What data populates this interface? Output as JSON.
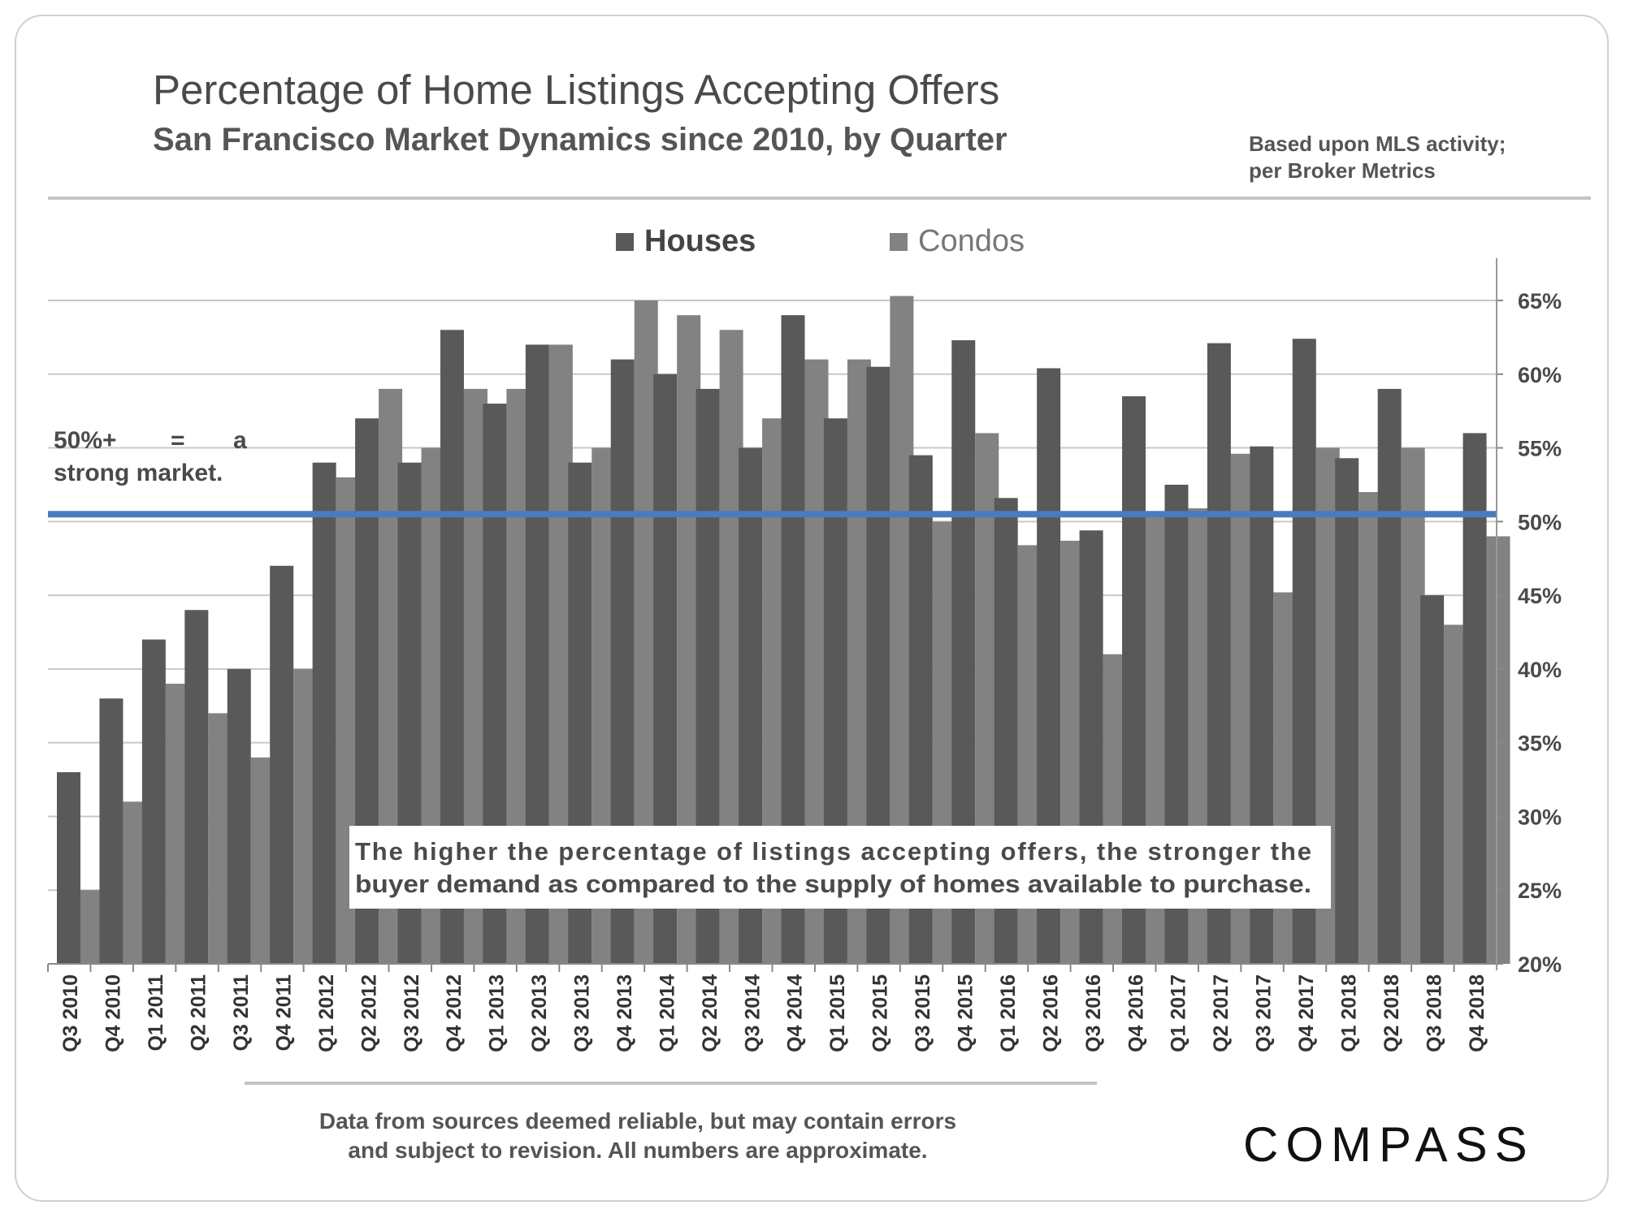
{
  "header": {
    "title": "Percentage of Home Listings Accepting Offers",
    "subtitle": "San Francisco Market Dynamics since 2010, by Quarter",
    "source_note_line1": "Based upon MLS activity;",
    "source_note_line2": "per Broker Metrics"
  },
  "annotation": {
    "line1_a": "50%+",
    "line1_b": "=",
    "line1_c": "a",
    "line2": "strong market."
  },
  "callout": {
    "line1": "The higher the percentage of listings accepting offers, the stronger the",
    "line2": "buyer demand as compared to the supply of homes available to purchase."
  },
  "footer": {
    "disclaimer_line1": "Data from sources deemed reliable, but may contain errors",
    "disclaimer_line2": "and subject to revision. All numbers are approximate.",
    "logo": "COMPASS"
  },
  "colors": {
    "houses": "#595959",
    "condos": "#828282",
    "threshold": "#4a7bbd",
    "grid": "#c8c8c8",
    "text": "#4a4a4a"
  },
  "chart_data": {
    "type": "bar",
    "title": "Percentage of Home Listings Accepting Offers",
    "subtitle": "San Francisco Market Dynamics since 2010, by Quarter",
    "xlabel": "",
    "ylabel": "",
    "ylim": [
      20,
      65
    ],
    "yticks": [
      20,
      25,
      30,
      35,
      40,
      45,
      50,
      55,
      60,
      65
    ],
    "ytick_labels": [
      "20%",
      "25%",
      "30%",
      "35%",
      "40%",
      "45%",
      "50%",
      "55%",
      "60%",
      "65%"
    ],
    "y_axis_side": "right",
    "grid": true,
    "legend_placement": "top-center",
    "threshold_line": 50.5,
    "categories": [
      "Q3 2010",
      "Q4 2010",
      "Q1 2011",
      "Q2 2011",
      "Q3 2011",
      "Q4 2011",
      "Q1 2012",
      "Q2 2012",
      "Q3 2012",
      "Q4 2012",
      "Q1 2013",
      "Q2 2013",
      "Q3 2013",
      "Q4 2013",
      "Q1 2014",
      "Q2 2014",
      "Q3 2014",
      "Q4 2014",
      "Q1 2015",
      "Q2 2015",
      "Q3 2015",
      "Q4 2015",
      "Q1 2016",
      "Q2 2016",
      "Q3 2016",
      "Q4 2016",
      "Q1 2017",
      "Q2 2017",
      "Q3 2017",
      "Q4 2017",
      "Q1 2018",
      "Q2 2018",
      "Q3 2018",
      "Q4 2018"
    ],
    "series": [
      {
        "name": "Houses",
        "values": [
          33,
          38,
          42,
          44,
          40,
          47,
          54,
          57,
          54,
          63,
          58,
          62,
          54,
          61,
          60,
          59,
          55,
          64,
          57,
          60.5,
          54.5,
          62.3,
          51.6,
          60.4,
          49.4,
          58.5,
          52.5,
          62.1,
          55.1,
          62.4,
          54.3,
          59,
          45,
          56
        ]
      },
      {
        "name": "Condos",
        "values": [
          25,
          31,
          39,
          37,
          34,
          40,
          53,
          59,
          55,
          59,
          59,
          62,
          55,
          65,
          64,
          63,
          57,
          61,
          61,
          65.3,
          50,
          56,
          48.4,
          48.7,
          41,
          50.5,
          50.9,
          54.6,
          45.2,
          55,
          52,
          55,
          43,
          49
        ]
      }
    ]
  }
}
